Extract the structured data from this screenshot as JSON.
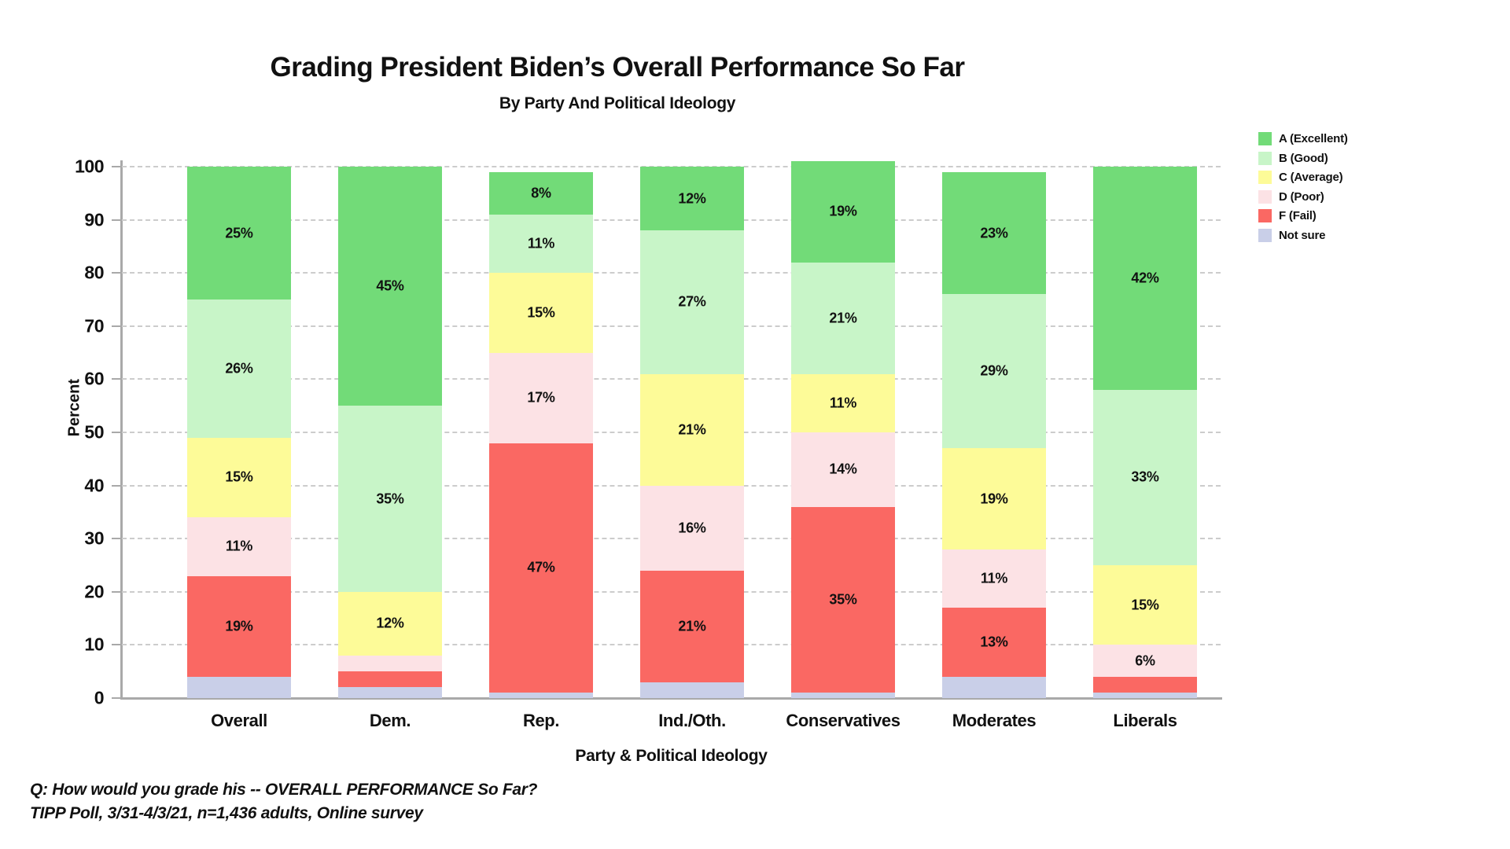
{
  "title": "Grading President Biden’s Overall Performance So Far",
  "subtitle": "By Party And Political Ideology",
  "footer": {
    "question": "Q:  How would you grade his -- OVERALL PERFORMANCE So Far?",
    "source": "TIPP Poll, 3/31-4/3/21, n=1,436 adults, Online survey"
  },
  "chart_data": {
    "type": "bar",
    "stacked": true,
    "title": "Grading President Biden’s Overall Performance So Far",
    "subtitle": "By Party And Political Ideology",
    "xlabel": "Party & Political Ideology",
    "ylabel": "Percent",
    "ylim": [
      0,
      100
    ],
    "yticks": [
      0,
      10,
      20,
      30,
      40,
      50,
      60,
      70,
      80,
      90,
      100
    ],
    "grid": "horizontal dashed",
    "legend_position": "outside upper right",
    "label_min_value": 6,
    "label_suffix": "%",
    "categories": [
      "Overall",
      "Dem.",
      "Rep.",
      "Ind./Oth.",
      "Conservatives",
      "Moderates",
      "Liberals"
    ],
    "series": [
      {
        "name": "Not sure",
        "color": "#C9CFE8",
        "values": [
          4,
          2,
          1,
          3,
          1,
          4,
          1
        ]
      },
      {
        "name": "F (Fail)",
        "color": "#FA6863",
        "values": [
          19,
          3,
          47,
          21,
          35,
          13,
          3
        ]
      },
      {
        "name": "D (Poor)",
        "color": "#FCE2E5",
        "values": [
          11,
          3,
          17,
          16,
          14,
          11,
          6
        ]
      },
      {
        "name": "C (Average)",
        "color": "#FDFB98",
        "values": [
          15,
          12,
          15,
          21,
          11,
          19,
          15
        ]
      },
      {
        "name": "B (Good)",
        "color": "#C8F5C8",
        "values": [
          26,
          35,
          11,
          27,
          21,
          29,
          33
        ]
      },
      {
        "name": "A (Excellent)",
        "color": "#72DB78",
        "values": [
          25,
          45,
          8,
          12,
          19,
          23,
          42
        ]
      }
    ],
    "legend_order": [
      "A (Excellent)",
      "B (Good)",
      "C (Average)",
      "D (Poor)",
      "F (Fail)",
      "Not sure"
    ],
    "axis_color": "#a9a9a9",
    "gridline_color": "#cccccc"
  }
}
